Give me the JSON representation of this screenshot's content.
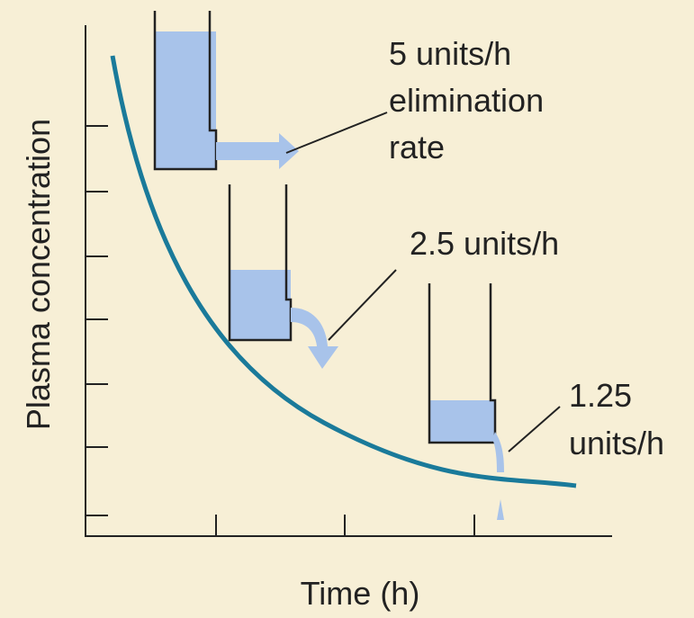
{
  "axes": {
    "y_label": "Plasma concentration",
    "x_label": "Time (h)"
  },
  "annotations": [
    {
      "lines": [
        "5 units/h",
        "elimination",
        "rate"
      ]
    },
    {
      "lines": [
        "2.5 units/h"
      ]
    },
    {
      "lines": [
        "1.25",
        "units/h"
      ]
    }
  ]
}
